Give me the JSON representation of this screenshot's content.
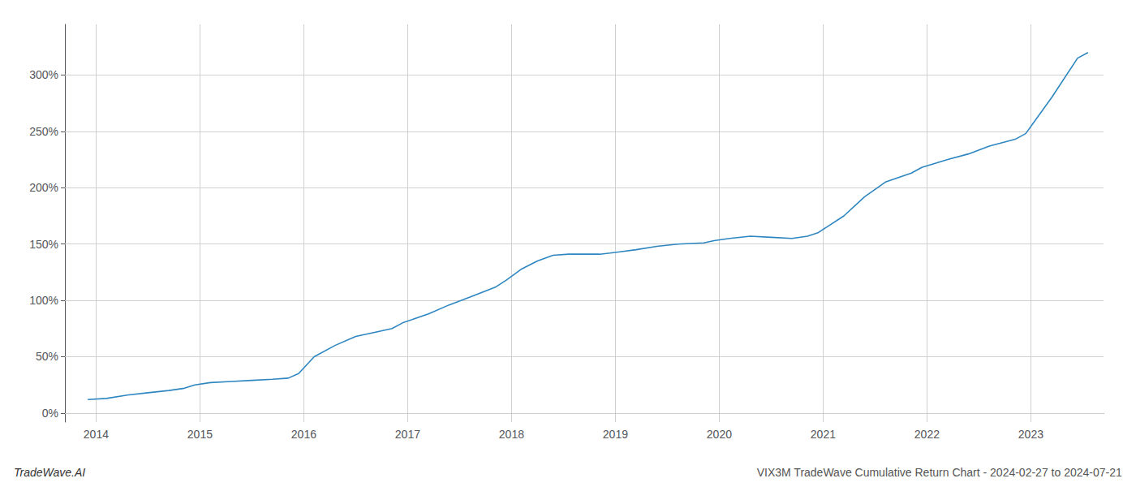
{
  "chart_data": {
    "type": "line",
    "title": "VIX3M TradeWave Cumulative Return Chart - 2024-02-27 to 2024-07-21",
    "annotations": [
      "TradeWave.AI"
    ],
    "x": [
      2013.92,
      2014.1,
      2014.3,
      2014.5,
      2014.7,
      2014.85,
      2014.95,
      2015.1,
      2015.3,
      2015.5,
      2015.7,
      2015.85,
      2015.95,
      2016.1,
      2016.3,
      2016.5,
      2016.7,
      2016.85,
      2016.95,
      2017.2,
      2017.4,
      2017.6,
      2017.85,
      2017.95,
      2018.1,
      2018.25,
      2018.4,
      2018.55,
      2018.7,
      2018.85,
      2018.95,
      2019.2,
      2019.4,
      2019.6,
      2019.85,
      2019.95,
      2020.1,
      2020.3,
      2020.5,
      2020.7,
      2020.85,
      2020.95,
      2021.2,
      2021.4,
      2021.6,
      2021.85,
      2021.95,
      2022.2,
      2022.4,
      2022.6,
      2022.85,
      2022.95,
      2023.2,
      2023.45,
      2023.55
    ],
    "values": [
      12,
      13,
      16,
      18,
      20,
      22,
      25,
      27,
      28,
      29,
      30,
      31,
      35,
      50,
      60,
      68,
      72,
      75,
      80,
      88,
      96,
      103,
      112,
      118,
      128,
      135,
      140,
      141,
      141,
      141,
      142,
      145,
      148,
      150,
      151,
      153,
      155,
      157,
      156,
      155,
      157,
      160,
      175,
      192,
      205,
      213,
      218,
      225,
      230,
      237,
      243,
      248,
      280,
      315,
      320
    ],
    "color": "#2e86c1",
    "xlim": [
      2013.7,
      2023.7
    ],
    "xticks": [
      2014,
      2015,
      2016,
      2017,
      2018,
      2019,
      2020,
      2021,
      2022,
      2023
    ],
    "ylim": [
      -8,
      345
    ],
    "yticks": [
      {
        "value": 0,
        "label": "0%"
      },
      {
        "value": 50,
        "label": "50%"
      },
      {
        "value": 100,
        "label": "100%"
      },
      {
        "value": 150,
        "label": "150%"
      },
      {
        "value": 200,
        "label": "200%"
      },
      {
        "value": 250,
        "label": "250%"
      },
      {
        "value": 300,
        "label": "300%"
      }
    ],
    "grid": true
  }
}
